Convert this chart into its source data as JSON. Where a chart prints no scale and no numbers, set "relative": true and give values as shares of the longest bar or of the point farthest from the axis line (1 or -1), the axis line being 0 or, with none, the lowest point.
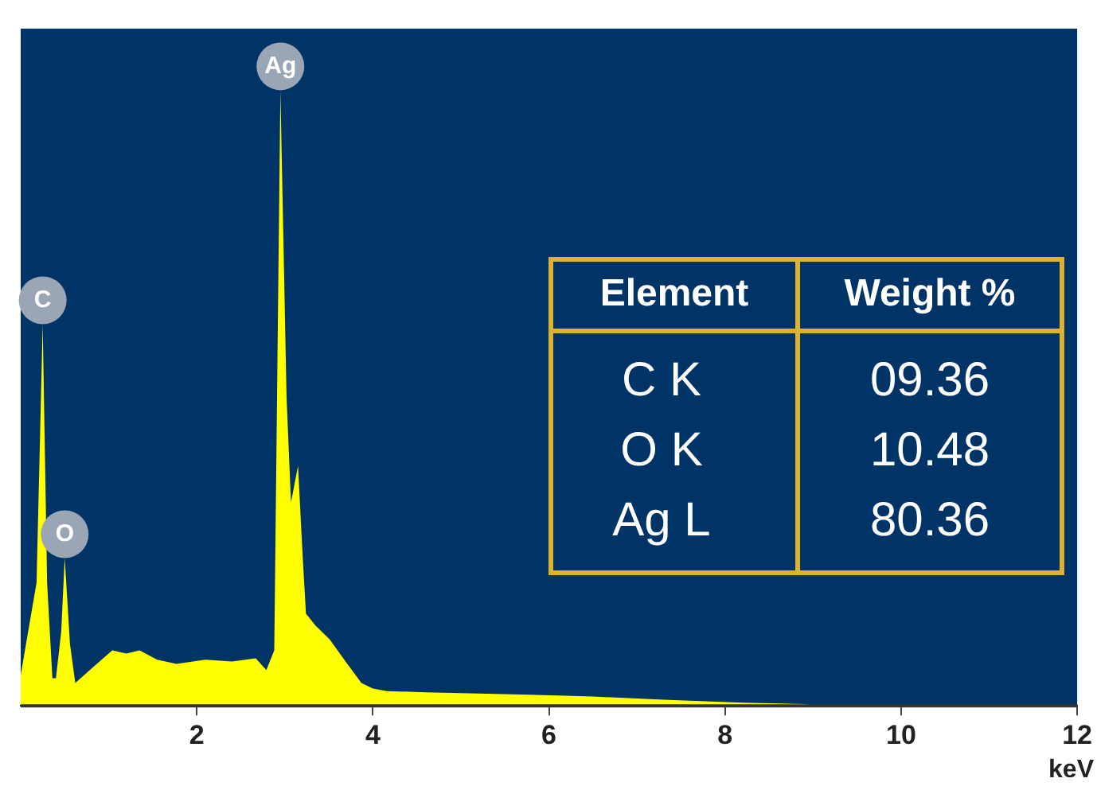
{
  "chart_data": {
    "type": "area",
    "relative": true,
    "xlabel": "keV",
    "xlim": [
      0,
      12
    ],
    "xticks": [
      2,
      4,
      6,
      8,
      10,
      12
    ],
    "grid": false,
    "legend": false,
    "tick_labels": "x",
    "x": [
      0,
      0.18,
      0.25,
      0.3,
      0.36,
      0.4,
      0.46,
      0.5,
      0.56,
      0.62,
      0.8,
      1.04,
      1.2,
      1.35,
      1.55,
      1.77,
      2.1,
      2.4,
      2.67,
      2.79,
      2.88,
      2.95,
      3.02,
      3.07,
      3.15,
      3.2,
      3.24,
      3.35,
      3.51,
      3.7,
      3.87,
      4.0,
      4.16,
      4.6,
      5.2,
      5.78,
      6.5,
      7.3,
      8.2,
      8.9,
      9.0,
      12
    ],
    "series": [
      {
        "color": "#ffff00",
        "values": [
          0.05,
          0.2,
          0.62,
          0.2,
          0.045,
          0.045,
          0.12,
          0.24,
          0.1,
          0.037,
          0.06,
          0.09,
          0.085,
          0.09,
          0.075,
          0.068,
          0.075,
          0.072,
          0.077,
          0.058,
          0.09,
          1.0,
          0.5,
          0.33,
          0.39,
          0.25,
          0.15,
          0.13,
          0.108,
          0.07,
          0.037,
          0.028,
          0.024,
          0.022,
          0.02,
          0.018,
          0.015,
          0.01,
          0.005,
          0.003,
          0,
          0
        ]
      }
    ],
    "annotations": [
      {
        "text": "C",
        "x": 0.25,
        "y": 0.62
      },
      {
        "text": "O",
        "x": 0.5,
        "y": 0.24
      },
      {
        "text": "Ag",
        "x": 2.95,
        "y": 1.0
      },
      "Element",
      "Weight %",
      "C K",
      "09.36",
      "O K",
      "10.48",
      "Ag L",
      "80.36"
    ]
  }
}
